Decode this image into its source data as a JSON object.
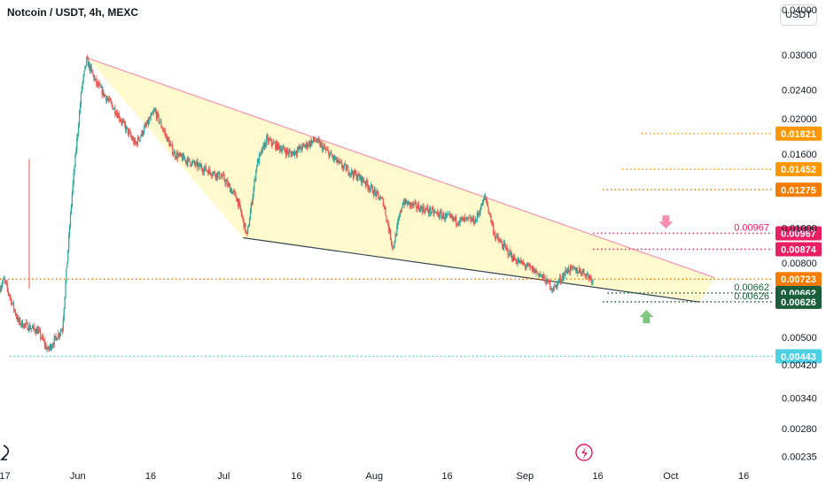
{
  "header": {
    "title": "Notcoin / USDT, 4h, MEXC",
    "currency_button": "USDT"
  },
  "colors": {
    "up": "#26a69a",
    "down": "#ef5350",
    "wedge_fill": "#fff9c4",
    "upper_line": "#f48fb1",
    "lower_line": "#37474f",
    "resistance": "#e91e63",
    "target": "#ff9800",
    "support": "#1b5e3b",
    "bottom": "#4dd0e1",
    "current": "#f57c00",
    "down_arrow": "#f48fb1",
    "up_arrow": "#81c784"
  },
  "chart_data": {
    "type": "candlestick",
    "title": "Notcoin / USDT, 4h, MEXC",
    "y_scale": "log",
    "ylim": [
      0.00225,
      0.0425
    ],
    "y_ticks": [
      "0.04000",
      "0.03000",
      "0.02400",
      "0.02000",
      "0.01600",
      "0.01000",
      "0.00800",
      "0.00500",
      "0.00420",
      "0.00340",
      "0.00280",
      "0.00235"
    ],
    "x_ticks": [
      "17",
      "Jun",
      "16",
      "Jul",
      "16",
      "Aug",
      "16",
      "Sep",
      "16",
      "Oct",
      "16"
    ],
    "x_range": [
      "2024-05-16",
      "2024-10-22"
    ],
    "price_path": [
      {
        "date": "2024-05-16",
        "price": 0.0068
      },
      {
        "date": "2024-05-17",
        "price": 0.0072
      },
      {
        "date": "2024-05-20",
        "price": 0.0055
      },
      {
        "date": "2024-05-24",
        "price": 0.0052
      },
      {
        "date": "2024-05-26",
        "price": 0.0046
      },
      {
        "date": "2024-05-29",
        "price": 0.0053
      },
      {
        "date": "2024-05-31",
        "price": 0.0125
      },
      {
        "date": "2024-06-02",
        "price": 0.0245
      },
      {
        "date": "2024-06-03",
        "price": 0.029
      },
      {
        "date": "2024-06-05",
        "price": 0.025
      },
      {
        "date": "2024-06-09",
        "price": 0.021
      },
      {
        "date": "2024-06-13",
        "price": 0.017
      },
      {
        "date": "2024-06-17",
        "price": 0.021
      },
      {
        "date": "2024-06-21",
        "price": 0.016
      },
      {
        "date": "2024-06-26",
        "price": 0.0148
      },
      {
        "date": "2024-07-01",
        "price": 0.0138
      },
      {
        "date": "2024-07-04",
        "price": 0.012
      },
      {
        "date": "2024-07-06",
        "price": 0.0095
      },
      {
        "date": "2024-07-08",
        "price": 0.015
      },
      {
        "date": "2024-07-10",
        "price": 0.0175
      },
      {
        "date": "2024-07-15",
        "price": 0.016
      },
      {
        "date": "2024-07-20",
        "price": 0.0175
      },
      {
        "date": "2024-07-25",
        "price": 0.015
      },
      {
        "date": "2024-07-30",
        "price": 0.0135
      },
      {
        "date": "2024-08-03",
        "price": 0.0118
      },
      {
        "date": "2024-08-05",
        "price": 0.0088
      },
      {
        "date": "2024-08-07",
        "price": 0.0118
      },
      {
        "date": "2024-08-12",
        "price": 0.0112
      },
      {
        "date": "2024-08-18",
        "price": 0.0105
      },
      {
        "date": "2024-08-22",
        "price": 0.0105
      },
      {
        "date": "2024-08-24",
        "price": 0.0122
      },
      {
        "date": "2024-08-26",
        "price": 0.0095
      },
      {
        "date": "2024-08-30",
        "price": 0.0082
      },
      {
        "date": "2024-09-04",
        "price": 0.0075
      },
      {
        "date": "2024-09-07",
        "price": 0.0068
      },
      {
        "date": "2024-09-10",
        "price": 0.0077
      },
      {
        "date": "2024-09-13",
        "price": 0.0076
      },
      {
        "date": "2024-09-15",
        "price": 0.00723
      }
    ],
    "spike_high": {
      "date": "2024-05-16",
      "price": 0.0155
    },
    "wedge": {
      "upper": [
        {
          "date": "2024-06-03",
          "price": 0.0294
        },
        {
          "date": "2024-10-10",
          "price": 0.0073
        }
      ],
      "lower": [
        {
          "date": "2024-07-05",
          "price": 0.0094
        },
        {
          "date": "2024-10-07",
          "price": 0.00625
        }
      ]
    },
    "horizontal_levels": [
      {
        "label": "0.01821",
        "value": 0.01821,
        "from": "2024-09-25",
        "color_key": "target"
      },
      {
        "label": "0.01452",
        "value": 0.01452,
        "from": "2024-09-21",
        "color_key": "target"
      },
      {
        "label": "0.01275",
        "value": 0.01275,
        "from": "2024-09-17",
        "color_key": "current"
      },
      {
        "label": "0.00967",
        "value": 0.00967,
        "from": "2024-09-15",
        "color_key": "resistance",
        "note": "0.00967"
      },
      {
        "label": "0.00874",
        "value": 0.00874,
        "from": "2024-09-15",
        "color_key": "resistance"
      },
      {
        "label": "0.00723",
        "value": 0.00723,
        "from": "2024-05-16",
        "color_key": "current"
      },
      {
        "label": "0.00662",
        "value": 0.00662,
        "from": "2024-09-18",
        "color_key": "support",
        "note": "0.00662"
      },
      {
        "label": "0.00626",
        "value": 0.00626,
        "from": "2024-09-17",
        "color_key": "support",
        "note": "0.00626"
      },
      {
        "label": "0.00443",
        "value": 0.00443,
        "from": "2024-05-18",
        "color_key": "bottom"
      }
    ],
    "arrows": [
      {
        "direction": "down",
        "date": "2024-09-30",
        "price": 0.0103
      },
      {
        "direction": "up",
        "date": "2024-09-26",
        "price": 0.00575
      }
    ]
  }
}
